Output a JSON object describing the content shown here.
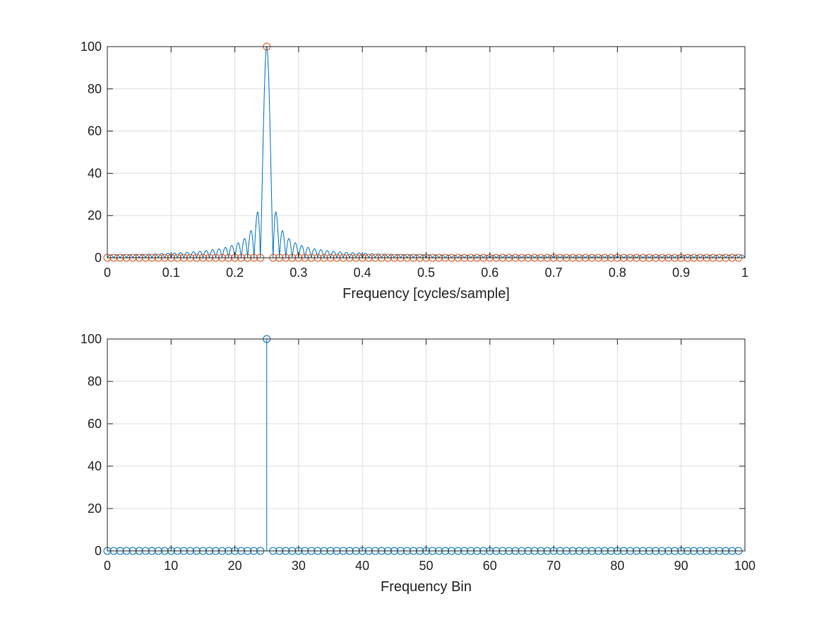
{
  "chart_data": [
    {
      "type": "line",
      "title": "",
      "xlabel": "Frequency [cycles/sample]",
      "ylabel": "",
      "xlim": [
        0,
        1
      ],
      "ylim": [
        0,
        100
      ],
      "grid": true,
      "xticks": [
        "0",
        "0.1",
        "0.2",
        "0.3",
        "0.4",
        "0.5",
        "0.6",
        "0.7",
        "0.8",
        "0.9",
        "1"
      ],
      "yticks": [
        "0",
        "20",
        "40",
        "60",
        "80",
        "100"
      ],
      "colors": {
        "spectrum": "#0072BD",
        "samples": "#D95319"
      },
      "series": [
        {
          "kind": "line",
          "description": "Magnitude of zero-padded DFT (Dirichlet kernel), main lobe at 0.25, peak 100",
          "peak_x": 0.25,
          "peak_y": 100,
          "sidelobe_peaks": [
            {
              "x": 0.235,
              "y": 22
            },
            {
              "x": 0.265,
              "y": 22
            },
            {
              "x": 0.225,
              "y": 13
            },
            {
              "x": 0.275,
              "y": 13
            },
            {
              "x": 0.215,
              "y": 9
            },
            {
              "x": 0.285,
              "y": 9
            }
          ]
        },
        {
          "kind": "markers",
          "marker": "circle",
          "description": "Unpadded DFT samples at k/100, k = 0..99",
          "x_start": 0,
          "x_step": 0.01,
          "count": 100,
          "peak_index": 25,
          "peak_y": 100,
          "other_y": 0
        }
      ]
    },
    {
      "type": "stem",
      "title": "",
      "xlabel": "Frequency Bin",
      "ylabel": "",
      "xlim": [
        0,
        100
      ],
      "ylim": [
        0,
        100
      ],
      "grid": true,
      "xticks": [
        "0",
        "10",
        "20",
        "30",
        "40",
        "50",
        "60",
        "70",
        "80",
        "90",
        "100"
      ],
      "yticks": [
        "0",
        "20",
        "40",
        "60",
        "80",
        "100"
      ],
      "colors": {
        "stem": "#0072BD"
      },
      "series": [
        {
          "kind": "stem",
          "marker": "circle",
          "x_start": 0,
          "x_step": 1,
          "count": 100,
          "peak_index": 25,
          "peak_y": 100,
          "other_y": 0
        }
      ]
    }
  ]
}
